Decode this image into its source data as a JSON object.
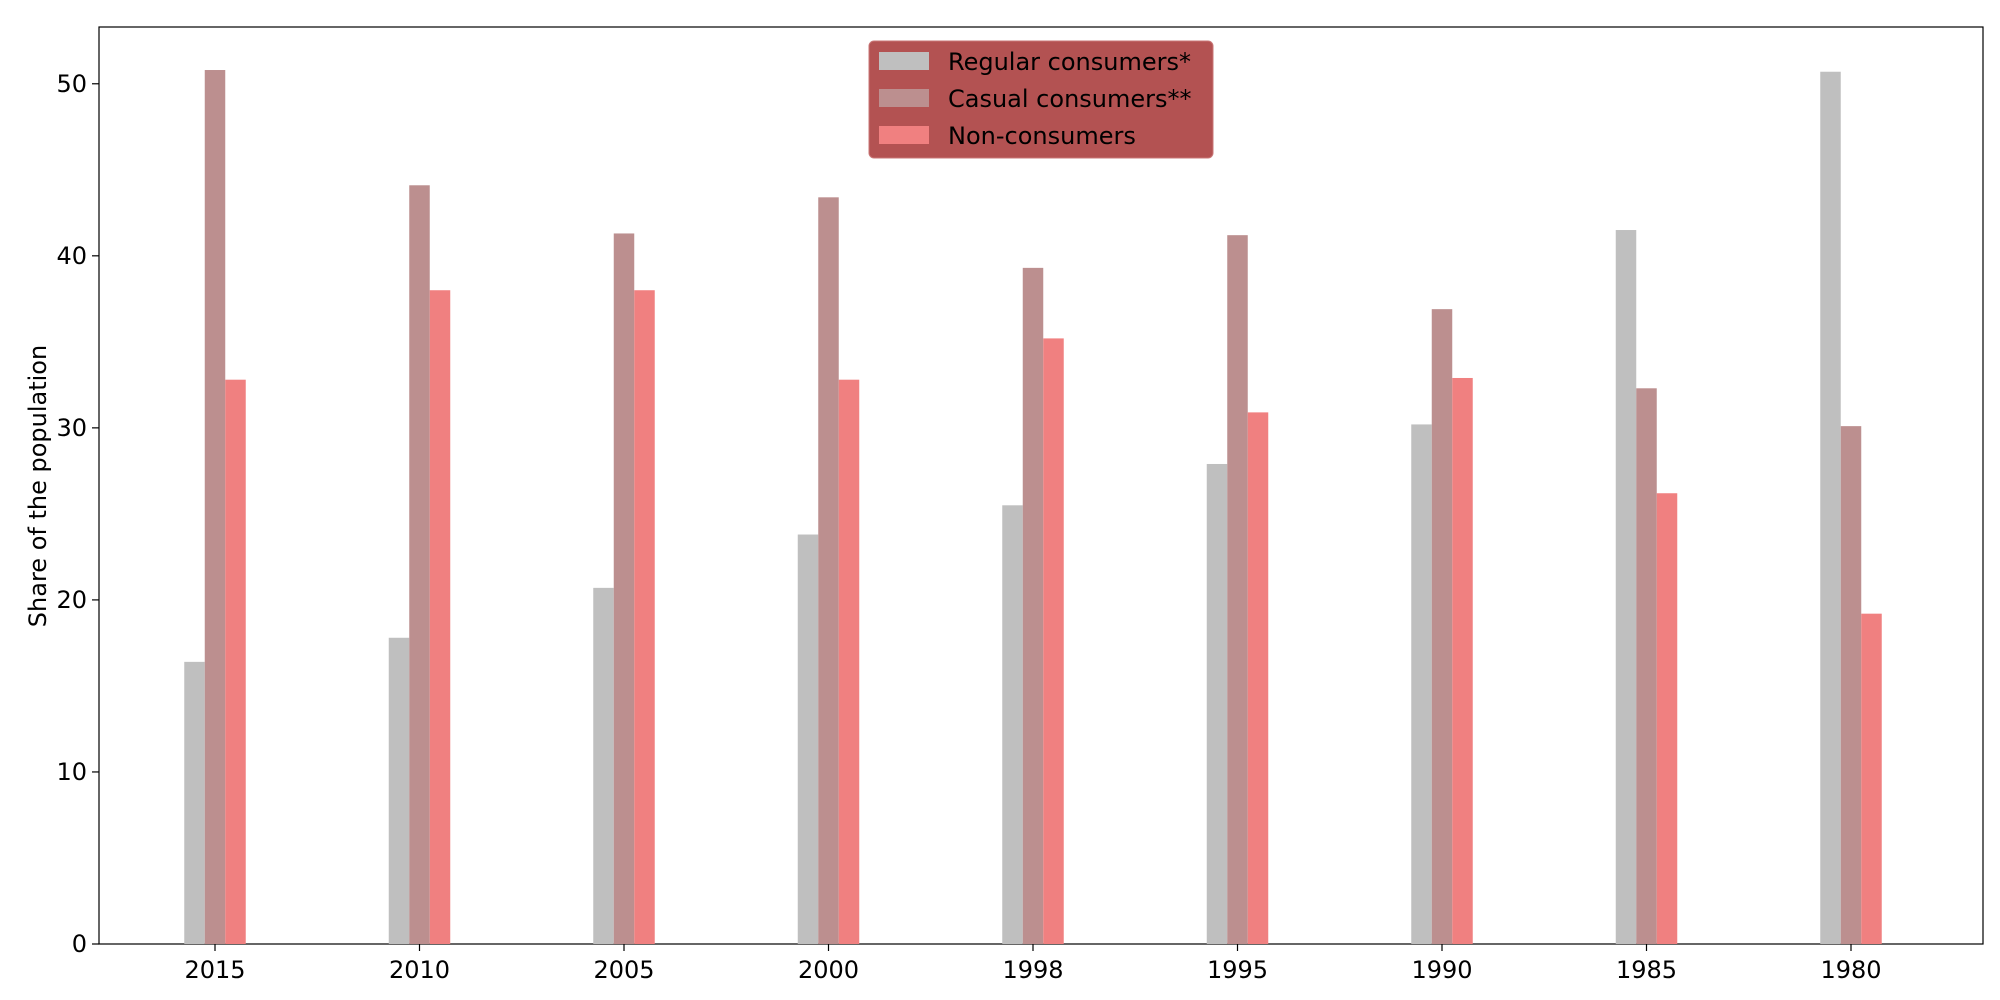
{
  "chart_data": {
    "type": "bar",
    "title": "",
    "xlabel": "",
    "ylabel": "Share of the population",
    "categories": [
      "2015",
      "2010",
      "2005",
      "2000",
      "1998",
      "1995",
      "1990",
      "1985",
      "1980"
    ],
    "series": [
      {
        "name": "Regular consumers*",
        "color": "#bfbfbf",
        "values": [
          16.4,
          17.8,
          20.7,
          23.8,
          25.5,
          27.9,
          30.2,
          41.5,
          50.7
        ]
      },
      {
        "name": "Casual consumers**",
        "color": "#bc8f8f",
        "values": [
          50.8,
          44.1,
          41.3,
          43.4,
          39.3,
          41.2,
          36.9,
          32.3,
          30.1
        ]
      },
      {
        "name": "Non-consumers",
        "color": "#f08080",
        "values": [
          32.8,
          38.0,
          38.0,
          32.8,
          35.2,
          30.9,
          32.9,
          26.2,
          19.2
        ]
      }
    ],
    "ylim": [
      0,
      53.3
    ],
    "yticks": [
      "0",
      "10",
      "20",
      "30",
      "40",
      "50"
    ],
    "grid": false,
    "legend": {
      "placement": "upper-center",
      "background": "#b35252"
    }
  }
}
